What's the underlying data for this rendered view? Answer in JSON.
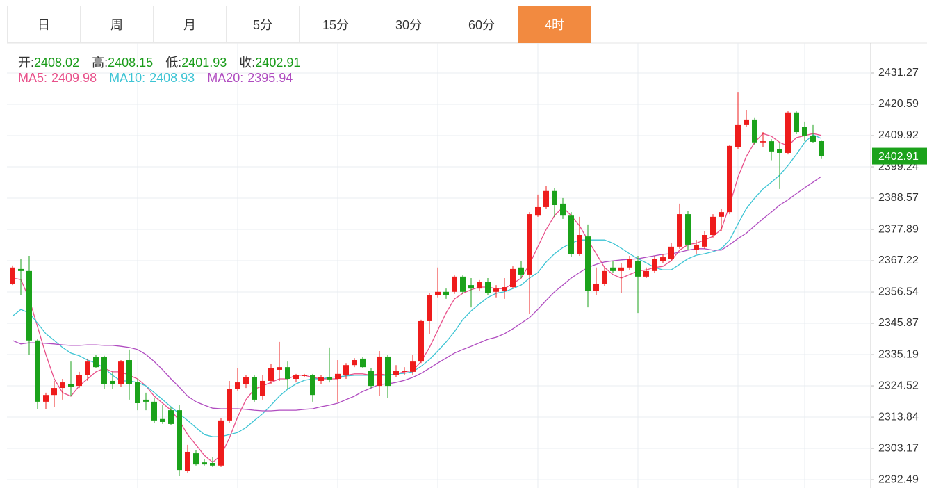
{
  "tabs": [
    "日",
    "周",
    "月",
    "5分",
    "15分",
    "30分",
    "60分",
    "4时"
  ],
  "active_tab": 7,
  "chart_data": {
    "type": "candlestick",
    "info_labels": [
      "开:",
      "高:",
      "低:",
      "收:"
    ],
    "up_color": "#ee1c1c",
    "down_color": "#1ba21b",
    "info_color": "#1a9c1a",
    "open": [
      2359.4,
      2364.4,
      2363.7,
      2340.0,
      2319.1,
      2321.4,
      2323.8,
      2325.2,
      2324.5,
      2328.1,
      2334.3,
      2334.3,
      2326.2,
      2325.0,
      2333.3,
      2325.7,
      2319.8,
      2319.1,
      2313.2,
      2316.2,
      2316.2,
      2295.4,
      2301.5,
      2298.4,
      2298.2,
      2297.3,
      2312.7,
      2323.4,
      2325.0,
      2327.4,
      2321.0,
      2326.2,
      2330.0,
      2330.9,
      2326.9,
      2327.9,
      2328.1,
      2326.2,
      2327.6,
      2326.9,
      2328.1,
      2331.6,
      2333.8,
      2329.7,
      2324.5,
      2334.5,
      2328.1,
      2329.3,
      2329.3,
      2332.8,
      2346.6,
      2355.4,
      2356.6,
      2356.6,
      2361.8,
      2358.9,
      2357.7,
      2360.1,
      2356.6,
      2357.0,
      2358.2,
      2364.9,
      2362.5,
      2382.6,
      2385.5,
      2391.0,
      2386.7,
      2382.6,
      2369.6,
      2375.5,
      2357.0,
      2359.4,
      2364.9,
      2363.7,
      2364.9,
      2367.2,
      2361.8,
      2363.7,
      2367.2,
      2367.9,
      2372.0,
      2383.1,
      2370.8,
      2372.0,
      2376.0,
      2382.2,
      2383.8,
      2405.9,
      2413.5,
      2415.4,
      2407.6,
      2408.0,
      2405.2,
      2404.0,
      2417.8,
      2412.8,
      2409.9,
      2408.02
    ],
    "high": [
      2365.6,
      2367.9,
      2368.9,
      2340.4,
      2322.2,
      2326.2,
      2326.9,
      2332.8,
      2329.3,
      2333.8,
      2335.2,
      2334.8,
      2329.3,
      2333.3,
      2336.9,
      2326.9,
      2322.2,
      2320.5,
      2318.1,
      2317.4,
      2317.9,
      2304.4,
      2302.5,
      2299.6,
      2300.1,
      2313.4,
      2326.2,
      2330.5,
      2328.1,
      2328.1,
      2328.1,
      2332.1,
      2339.5,
      2332.8,
      2328.6,
      2328.6,
      2328.6,
      2328.1,
      2337.6,
      2333.3,
      2332.3,
      2334.0,
      2334.3,
      2330.5,
      2336.4,
      2335.2,
      2331.6,
      2330.9,
      2335.2,
      2347.1,
      2356.1,
      2364.9,
      2357.7,
      2362.2,
      2362.2,
      2361.3,
      2360.6,
      2361.3,
      2358.9,
      2361.3,
      2365.3,
      2367.2,
      2383.8,
      2389.8,
      2392.6,
      2392.1,
      2388.6,
      2383.8,
      2382.2,
      2379.6,
      2364.9,
      2364.9,
      2367.2,
      2366.5,
      2368.9,
      2368.9,
      2364.9,
      2368.9,
      2369.6,
      2373.2,
      2386.7,
      2384.3,
      2374.3,
      2377.2,
      2383.1,
      2385.0,
      2406.8,
      2424.6,
      2418.7,
      2415.9,
      2411.1,
      2408.7,
      2407.6,
      2418.2,
      2418.2,
      2414.7,
      2413.5,
      2408.15
    ],
    "low": [
      2358.9,
      2355.4,
      2335.2,
      2316.7,
      2316.7,
      2317.4,
      2319.8,
      2321.0,
      2323.8,
      2326.2,
      2330.5,
      2323.4,
      2323.4,
      2324.3,
      2319.8,
      2316.2,
      2316.2,
      2311.9,
      2311.5,
      2311.0,
      2293.7,
      2294.9,
      2297.3,
      2297.3,
      2296.8,
      2296.8,
      2311.9,
      2322.9,
      2323.8,
      2319.1,
      2319.8,
      2325.2,
      2326.2,
      2323.4,
      2325.7,
      2327.4,
      2319.1,
      2325.2,
      2325.7,
      2319.1,
      2326.9,
      2330.9,
      2330.5,
      2323.8,
      2321.0,
      2320.5,
      2327.4,
      2328.1,
      2328.1,
      2332.3,
      2342.3,
      2354.7,
      2354.2,
      2355.9,
      2355.9,
      2351.3,
      2357.0,
      2355.4,
      2354.7,
      2354.2,
      2357.7,
      2361.3,
      2349.0,
      2382.2,
      2385.0,
      2382.2,
      2381.5,
      2368.4,
      2368.9,
      2351.3,
      2355.4,
      2358.5,
      2363.2,
      2356.1,
      2364.1,
      2349.4,
      2361.3,
      2363.2,
      2366.5,
      2367.2,
      2371.3,
      2370.8,
      2369.6,
      2371.3,
      2375.1,
      2377.2,
      2383.1,
      2405.2,
      2412.8,
      2406.8,
      2405.9,
      2401.5,
      2391.7,
      2403.5,
      2410.4,
      2408.0,
      2407.3,
      2401.93
    ],
    "close": [
      2364.9,
      2363.7,
      2340.0,
      2319.1,
      2321.4,
      2323.8,
      2325.7,
      2324.3,
      2328.1,
      2332.8,
      2330.9,
      2325.2,
      2325.0,
      2332.8,
      2325.2,
      2318.6,
      2319.1,
      2312.7,
      2312.2,
      2311.5,
      2295.8,
      2302.0,
      2297.7,
      2297.7,
      2297.3,
      2312.7,
      2323.4,
      2325.7,
      2327.4,
      2319.8,
      2326.2,
      2330.5,
      2330.9,
      2326.9,
      2328.1,
      2328.1,
      2321.4,
      2327.4,
      2326.7,
      2328.6,
      2331.6,
      2333.3,
      2330.9,
      2324.5,
      2334.5,
      2324.5,
      2329.7,
      2329.7,
      2332.8,
      2346.6,
      2355.4,
      2356.6,
      2355.4,
      2361.8,
      2356.6,
      2357.7,
      2360.1,
      2356.1,
      2357.7,
      2358.2,
      2364.4,
      2362.5,
      2383.1,
      2385.5,
      2391.0,
      2386.2,
      2382.6,
      2369.6,
      2376.0,
      2357.0,
      2359.4,
      2363.7,
      2363.7,
      2364.9,
      2367.9,
      2361.8,
      2363.7,
      2367.9,
      2368.4,
      2372.0,
      2383.1,
      2372.7,
      2372.7,
      2376.0,
      2382.2,
      2383.8,
      2406.4,
      2413.5,
      2415.4,
      2407.6,
      2408.0,
      2404.5,
      2404.0,
      2417.8,
      2411.1,
      2409.9,
      2407.8,
      2402.91
    ],
    "series": [
      {
        "name": "MA5:",
        "color": "#e8508a",
        "values": [
          2361.3,
          2360.8,
          2354.2,
          2344.7,
          2335.2,
          2326.9,
          2322.2,
          2321.0,
          2324.5,
          2326.9,
          2329.3,
          2330.5,
          2329.3,
          2329.3,
          2328.1,
          2326.9,
          2324.5,
          2321.0,
          2318.6,
          2316.2,
          2312.7,
          2307.9,
          2304.4,
          2300.8,
          2298.4,
          2300.8,
          2306.7,
          2313.9,
          2319.8,
          2323.4,
          2324.5,
          2325.7,
          2326.9,
          2326.9,
          2328.1,
          2328.1,
          2327.4,
          2326.9,
          2326.9,
          2326.9,
          2328.1,
          2328.6,
          2328.6,
          2328.1,
          2328.6,
          2328.1,
          2328.6,
          2329.3,
          2329.7,
          2332.8,
          2337.6,
          2343.5,
          2349.4,
          2354.2,
          2356.1,
          2357.3,
          2358.2,
          2358.2,
          2357.7,
          2357.7,
          2359.4,
          2361.3,
          2366.0,
          2372.0,
          2377.9,
          2382.6,
          2385.5,
          2382.6,
          2379.1,
          2374.3,
          2369.6,
          2364.9,
          2362.5,
          2361.3,
          2362.5,
          2363.7,
          2364.1,
          2364.9,
          2365.3,
          2367.2,
          2370.8,
          2372.7,
          2373.2,
          2374.3,
          2375.5,
          2377.9,
          2386.2,
          2395.7,
          2402.8,
          2407.6,
          2410.6,
          2409.7,
          2407.6,
          2406.4,
          2409.2,
          2409.9,
          2410.6,
          2409.98
        ]
      },
      {
        "name": "MA10:",
        "color": "#3cc4d4",
        "values": [
          2348.3,
          2350.6,
          2349.4,
          2345.9,
          2342.3,
          2340.0,
          2337.6,
          2335.7,
          2334.8,
          2333.3,
          2332.3,
          2330.5,
          2328.1,
          2326.2,
          2326.2,
          2325.7,
          2324.5,
          2322.2,
          2319.8,
          2317.4,
          2315.0,
          2312.7,
          2310.3,
          2307.9,
          2307.2,
          2307.2,
          2307.9,
          2308.6,
          2310.3,
          2312.7,
          2315.0,
          2317.9,
          2321.0,
          2323.4,
          2325.2,
          2326.4,
          2326.9,
          2326.9,
          2327.4,
          2327.6,
          2327.9,
          2328.1,
          2328.1,
          2328.1,
          2328.1,
          2328.1,
          2328.6,
          2328.8,
          2329.3,
          2331.2,
          2333.5,
          2336.4,
          2339.5,
          2343.0,
          2347.1,
          2350.1,
          2352.5,
          2354.7,
          2356.1,
          2356.6,
          2357.7,
          2358.9,
          2361.3,
          2363.2,
          2366.8,
          2369.6,
          2371.7,
          2373.2,
          2374.3,
          2374.3,
          2374.3,
          2374.3,
          2373.2,
          2371.5,
          2369.6,
          2367.9,
          2366.5,
          2364.9,
          2364.1,
          2364.1,
          2366.0,
          2367.9,
          2369.1,
          2369.6,
          2370.3,
          2371.3,
          2374.3,
          2379.8,
          2385.0,
          2388.6,
          2391.7,
          2394.0,
          2396.4,
          2399.7,
          2403.5,
          2407.6,
          2410.2,
          2408.93
        ]
      },
      {
        "name": "MA20:",
        "color": "#b04cc0",
        "values": [
          2340.0,
          2338.8,
          2339.2,
          2339.2,
          2339.0,
          2338.8,
          2338.5,
          2338.3,
          2338.3,
          2338.5,
          2338.5,
          2338.3,
          2338.3,
          2338.0,
          2337.6,
          2336.9,
          2335.2,
          2332.8,
          2330.0,
          2326.9,
          2324.1,
          2321.0,
          2319.1,
          2317.9,
          2316.9,
          2316.7,
          2316.7,
          2316.7,
          2316.5,
          2316.2,
          2316.0,
          2316.0,
          2316.2,
          2316.2,
          2316.2,
          2316.5,
          2316.7,
          2317.4,
          2317.9,
          2318.6,
          2319.8,
          2321.0,
          2322.6,
          2323.8,
          2325.0,
          2325.2,
          2325.7,
          2326.4,
          2327.4,
          2328.8,
          2330.5,
          2332.3,
          2334.0,
          2335.7,
          2336.9,
          2338.0,
          2339.2,
          2340.4,
          2341.1,
          2342.3,
          2344.0,
          2345.9,
          2347.8,
          2350.6,
          2353.7,
          2356.6,
          2358.9,
          2361.3,
          2363.2,
          2364.9,
          2366.0,
          2366.8,
          2367.2,
          2367.5,
          2367.7,
          2367.9,
          2368.4,
          2368.9,
          2369.4,
          2369.6,
          2370.1,
          2370.8,
          2371.3,
          2371.3,
          2370.8,
          2370.8,
          2372.7,
          2374.8,
          2376.6,
          2379.1,
          2381.5,
          2383.8,
          2386.2,
          2388.0,
          2390.1,
          2392.1,
          2394.0,
          2395.94
        ]
      }
    ],
    "ylim": [
      2289.66,
      2441.47
    ],
    "yticks": [
      2431.27,
      2420.59,
      2409.92,
      2399.24,
      2388.57,
      2377.89,
      2367.22,
      2356.54,
      2345.87,
      2335.19,
      2324.52,
      2313.84,
      2303.17,
      2292.49
    ],
    "grid": true
  }
}
